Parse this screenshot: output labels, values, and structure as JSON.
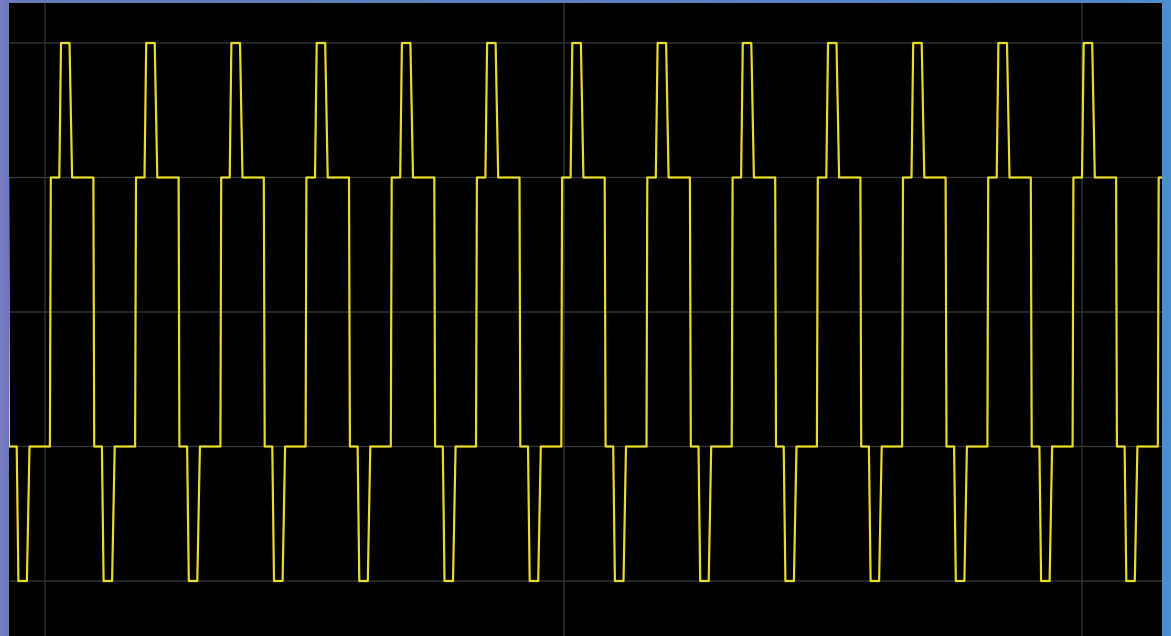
{
  "chart_data": {
    "type": "line",
    "title": "",
    "xlabel": "",
    "ylabel": "",
    "grid": true,
    "legend": "none",
    "grid_divisions": {
      "x": 2,
      "y": 4
    },
    "ylim": [
      -2,
      2
    ],
    "xlim": [
      0,
      13.4
    ],
    "series": [
      {
        "color": "#e6dc2a",
        "waveform": "stepped-square",
        "levels": [
          -2,
          -1,
          1,
          2
        ],
        "period": 1.0,
        "cycles_shown": 13.4,
        "period_points": [
          [
            0.0,
            1
          ],
          [
            0.1,
            1
          ],
          [
            0.12,
            2
          ],
          [
            0.22,
            2
          ],
          [
            0.25,
            1
          ],
          [
            0.5,
            1
          ],
          [
            0.51,
            -1
          ],
          [
            0.6,
            -1
          ],
          [
            0.62,
            -2
          ],
          [
            0.72,
            -2
          ],
          [
            0.75,
            -1
          ],
          [
            0.99,
            -1
          ],
          [
            1.0,
            1
          ]
        ]
      }
    ]
  },
  "colors": {
    "screen_background": "#000000",
    "grid_line": "#3a3a3a",
    "trace": "#e6dc2a"
  }
}
